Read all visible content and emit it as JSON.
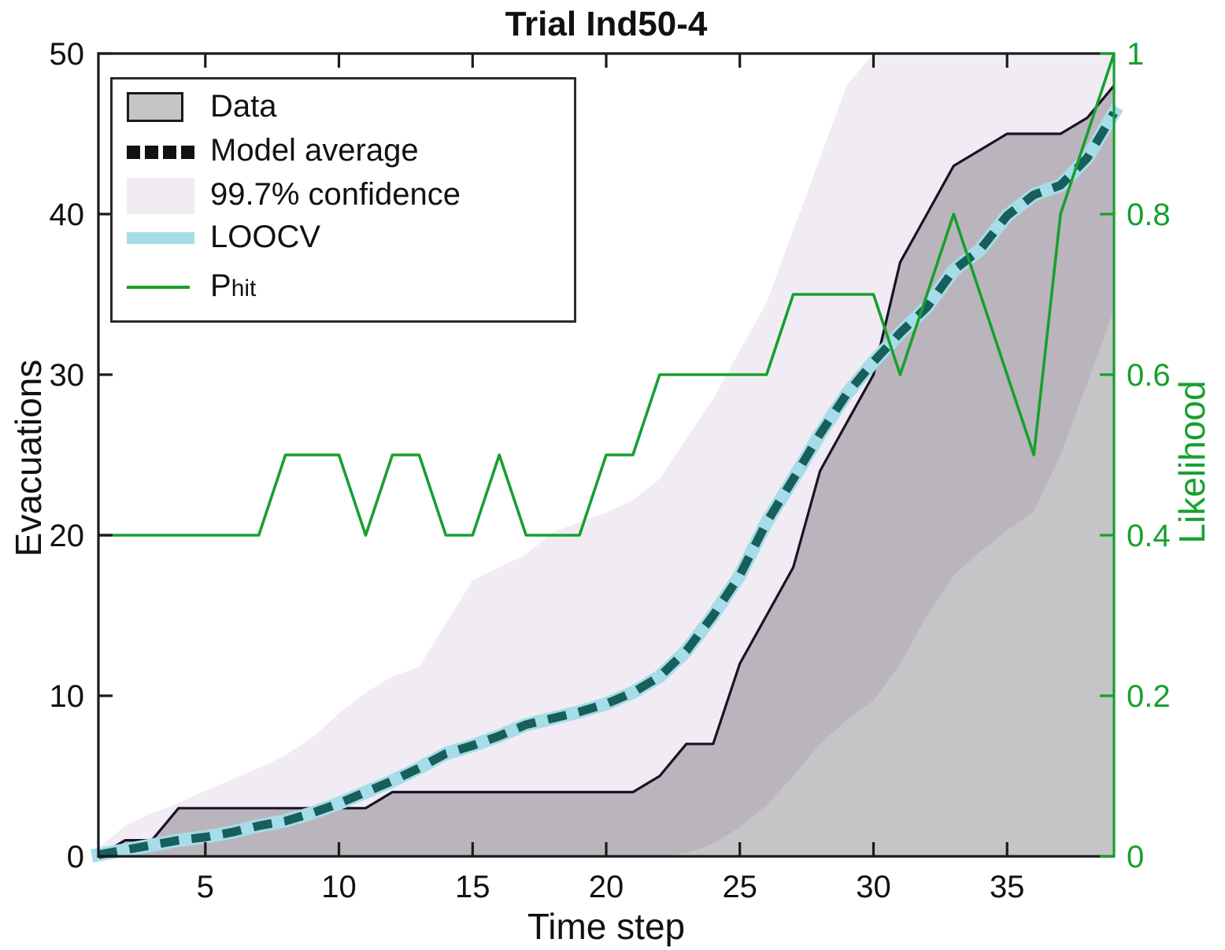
{
  "title": "Trial Ind50-4",
  "axes": {
    "bottom_label": "Time step",
    "left_label": "Evacuations",
    "right_label": "Likelihood",
    "x_ticks": [
      5,
      10,
      15,
      20,
      25,
      30,
      35
    ],
    "y_left_ticks": [
      0,
      10,
      20,
      30,
      40,
      50
    ],
    "y_right_ticks": [
      "0",
      "0.2",
      "0.4",
      "0.6",
      "0.8",
      "1"
    ]
  },
  "legend": {
    "items": [
      {
        "id": "data",
        "label": "Data"
      },
      {
        "id": "model",
        "label": "Model average"
      },
      {
        "id": "conf",
        "label": "99.7% confidence"
      },
      {
        "id": "loocv",
        "label": "LOOCV"
      },
      {
        "id": "phit",
        "label_main": "P",
        "label_sub": "hit"
      }
    ]
  },
  "colors": {
    "axis": "#1a1a1a",
    "right_axis_green": "#16a02d",
    "phit_line": "#16a02d",
    "data_fill": "#c5c4c6",
    "data_line": "#1a1228",
    "confidence_fill": "#f1ecf4",
    "loocv_line": "#a6dde9",
    "model_dash_plot": "#185e5b",
    "model_dash_legend": "#111111",
    "title_color": "#111111"
  },
  "chart_data": {
    "type": "line",
    "title": "Trial Ind50-4",
    "xlabel": "Time step",
    "ylabel_left": "Evacuations",
    "ylabel_right": "Likelihood",
    "xlim": [
      1,
      39
    ],
    "ylim_left": [
      0,
      50
    ],
    "ylim_right": [
      0,
      1
    ],
    "grid": false,
    "legend_position": "top-left",
    "x": [
      1,
      2,
      3,
      4,
      5,
      6,
      7,
      8,
      9,
      10,
      11,
      12,
      13,
      14,
      15,
      16,
      17,
      18,
      19,
      20,
      21,
      22,
      23,
      24,
      25,
      26,
      27,
      28,
      29,
      30,
      31,
      32,
      33,
      34,
      35,
      36,
      37,
      38,
      39
    ],
    "series": [
      {
        "name": "Data",
        "axis": "left",
        "style": "filled-staircase",
        "values": [
          0,
          1,
          1,
          3,
          3,
          3,
          3,
          3,
          3,
          3,
          3,
          4,
          4,
          4,
          4,
          4,
          4,
          4,
          4,
          4,
          4,
          5,
          7,
          7,
          12,
          15,
          18,
          24,
          27,
          30,
          37,
          40,
          43,
          44,
          45,
          45,
          45,
          46,
          48
        ]
      },
      {
        "name": "Model average",
        "axis": "left",
        "style": "dashed",
        "values": [
          0.1,
          0.4,
          0.7,
          1.0,
          1.2,
          1.5,
          1.9,
          2.2,
          2.7,
          3.3,
          4.0,
          4.7,
          5.5,
          6.4,
          6.9,
          7.5,
          8.2,
          8.6,
          9.0,
          9.5,
          10.2,
          11.2,
          12.8,
          15.0,
          17.5,
          20.8,
          23.5,
          26.3,
          28.8,
          30.8,
          32.6,
          34.2,
          36.5,
          37.8,
          39.9,
          41.2,
          41.8,
          43.5,
          46.3
        ]
      },
      {
        "name": "99.7% confidence upper",
        "axis": "left",
        "style": "band-upper",
        "values": [
          0.5,
          1.9,
          2.7,
          3.3,
          4.1,
          4.8,
          5.5,
          6.3,
          7.4,
          8.9,
          10.2,
          11.2,
          11.8,
          14.5,
          17.2,
          18.0,
          18.8,
          20.2,
          20.8,
          21.4,
          22.2,
          23.5,
          26.0,
          28.5,
          31.5,
          34.5,
          39.0,
          43.5,
          48.0,
          50,
          50,
          50,
          50,
          50,
          50,
          50,
          50,
          50,
          50
        ]
      },
      {
        "name": "99.7% confidence lower",
        "axis": "left",
        "style": "band-lower",
        "values": [
          0,
          0,
          0,
          0,
          0,
          0,
          0,
          0,
          0,
          0,
          0,
          0,
          0,
          0,
          0,
          0,
          0,
          0,
          0,
          0,
          0,
          0,
          0.2,
          0.8,
          1.8,
          3.2,
          5.0,
          7.0,
          8.5,
          9.7,
          12.0,
          15.0,
          17.5,
          19.0,
          20.3,
          21.5,
          25.0,
          29.5,
          34.0
        ]
      },
      {
        "name": "LOOCV",
        "axis": "left",
        "style": "thick",
        "values": [
          0.1,
          0.4,
          0.7,
          1.0,
          1.2,
          1.5,
          1.9,
          2.2,
          2.7,
          3.3,
          4.0,
          4.7,
          5.5,
          6.4,
          6.9,
          7.5,
          8.2,
          8.6,
          9.0,
          9.5,
          10.2,
          11.2,
          12.8,
          15.0,
          17.5,
          20.8,
          23.5,
          26.3,
          28.8,
          30.8,
          32.6,
          34.2,
          36.5,
          37.8,
          39.9,
          41.2,
          41.8,
          43.5,
          46.3
        ]
      },
      {
        "name": "P_hit",
        "axis": "right",
        "style": "thin",
        "values": [
          0.4,
          0.4,
          0.4,
          0.4,
          0.4,
          0.4,
          0.4,
          0.5,
          0.5,
          0.5,
          0.4,
          0.5,
          0.5,
          0.4,
          0.4,
          0.5,
          0.4,
          0.4,
          0.4,
          0.5,
          0.5,
          0.6,
          0.6,
          0.6,
          0.6,
          0.6,
          0.7,
          0.7,
          0.7,
          0.7,
          0.6,
          0.7,
          0.8,
          0.7,
          0.6,
          0.5,
          0.8,
          0.9,
          1.0
        ]
      }
    ]
  }
}
